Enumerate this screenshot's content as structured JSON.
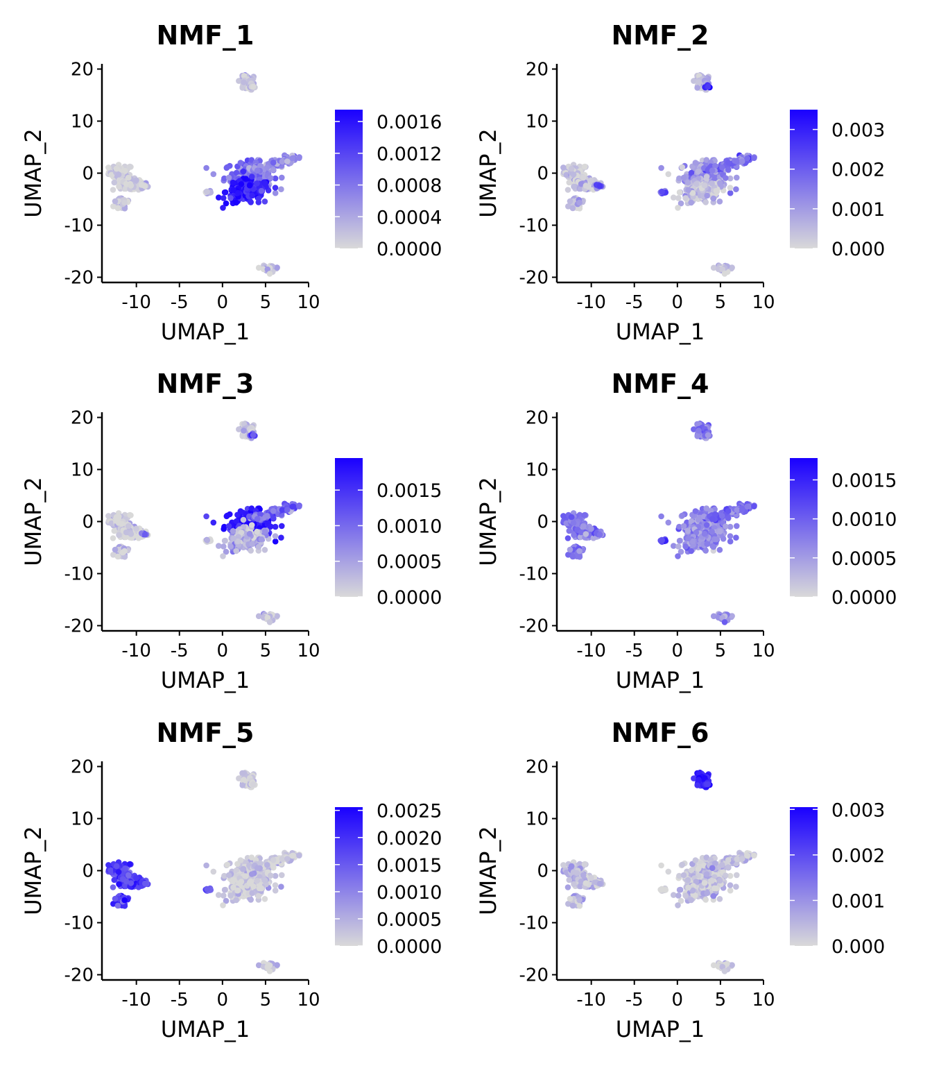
{
  "chart_data": [
    {
      "type": "scatter",
      "title": "NMF_1",
      "xlabel": "UMAP_1",
      "ylabel": "UMAP_2",
      "xlim": [
        -14,
        10
      ],
      "ylim": [
        -21,
        21
      ],
      "xticks": [
        "-10",
        "-5",
        "0",
        "5",
        "10"
      ],
      "yticks": [
        "-20",
        "-10",
        "0",
        "10",
        "20"
      ],
      "grid": false,
      "legend_position": "right",
      "colorbar": {
        "min": 0.0,
        "max": 0.00175,
        "low_color": "#d9d9d9",
        "high_color": "#1a00ff",
        "labels": [
          "0.0000",
          "0.0004",
          "0.0008",
          "0.0012",
          "0.0016"
        ]
      },
      "cluster_levels": {
        "left": 0.03,
        "small": 0.08,
        "main_upper": 0.45,
        "main_lower": 0.88,
        "arm": 0.35,
        "top": 0.1,
        "bottom": 0.08,
        "hotspot": 0.0
      }
    },
    {
      "type": "scatter",
      "title": "NMF_2",
      "xlabel": "UMAP_1",
      "ylabel": "UMAP_2",
      "xlim": [
        -14,
        10
      ],
      "ylim": [
        -21,
        21
      ],
      "xticks": [
        "-10",
        "-5",
        "0",
        "5",
        "10"
      ],
      "yticks": [
        "-20",
        "-10",
        "0",
        "10",
        "20"
      ],
      "grid": false,
      "legend_position": "right",
      "colorbar": {
        "min": 0.0,
        "max": 0.0035,
        "low_color": "#d9d9d9",
        "high_color": "#1a00ff",
        "labels": [
          "0.000",
          "0.001",
          "0.002",
          "0.003"
        ]
      },
      "cluster_levels": {
        "left": 0.12,
        "small": 0.55,
        "main_upper": 0.3,
        "main_lower": 0.12,
        "arm": 0.45,
        "top": 0.15,
        "bottom": 0.12,
        "hotspot": 0.75
      }
    },
    {
      "type": "scatter",
      "title": "NMF_3",
      "xlabel": "UMAP_1",
      "ylabel": "UMAP_2",
      "xlim": [
        -14,
        10
      ],
      "ylim": [
        -21,
        21
      ],
      "xticks": [
        "-10",
        "-5",
        "0",
        "5",
        "10"
      ],
      "yticks": [
        "-20",
        "-10",
        "0",
        "10",
        "20"
      ],
      "grid": false,
      "legend_position": "right",
      "colorbar": {
        "min": 0.0,
        "max": 0.00195,
        "low_color": "#d9d9d9",
        "high_color": "#1a00ff",
        "labels": [
          "0.0000",
          "0.0005",
          "0.0010",
          "0.0015"
        ]
      },
      "cluster_levels": {
        "left": 0.04,
        "small": 0.05,
        "main_upper": 0.88,
        "main_lower": 0.15,
        "arm": 0.55,
        "top": 0.08,
        "bottom": 0.1,
        "hotspot": 0.6
      }
    },
    {
      "type": "scatter",
      "title": "NMF_4",
      "xlabel": "UMAP_1",
      "ylabel": "UMAP_2",
      "xlim": [
        -14,
        10
      ],
      "ylim": [
        -21,
        21
      ],
      "xticks": [
        "-10",
        "-5",
        "0",
        "5",
        "10"
      ],
      "yticks": [
        "-20",
        "-10",
        "0",
        "10",
        "20"
      ],
      "grid": false,
      "legend_position": "right",
      "colorbar": {
        "min": 0.0,
        "max": 0.00178,
        "low_color": "#d9d9d9",
        "high_color": "#1a00ff",
        "labels": [
          "0.0000",
          "0.0005",
          "0.0010",
          "0.0015"
        ]
      },
      "cluster_levels": {
        "left": 0.45,
        "small": 0.7,
        "main_upper": 0.4,
        "main_lower": 0.35,
        "arm": 0.5,
        "top": 0.45,
        "bottom": 0.35,
        "hotspot": 0.5
      }
    },
    {
      "type": "scatter",
      "title": "NMF_5",
      "xlabel": "UMAP_1",
      "ylabel": "UMAP_2",
      "xlim": [
        -14,
        10
      ],
      "ylim": [
        -21,
        21
      ],
      "xticks": [
        "-10",
        "-5",
        "0",
        "5",
        "10"
      ],
      "yticks": [
        "-20",
        "-10",
        "0",
        "10",
        "20"
      ],
      "grid": false,
      "legend_position": "right",
      "colorbar": {
        "min": 0.0,
        "max": 0.00256,
        "low_color": "#d9d9d9",
        "high_color": "#1a00ff",
        "labels": [
          "0.0000",
          "0.0005",
          "0.0010",
          "0.0015",
          "0.0020",
          "0.0025"
        ]
      },
      "cluster_levels": {
        "left": 0.72,
        "small": 0.55,
        "main_upper": 0.04,
        "main_lower": 0.04,
        "arm": 0.03,
        "top": 0.03,
        "bottom": 0.03,
        "hotspot": 0.0
      }
    },
    {
      "type": "scatter",
      "title": "NMF_6",
      "xlabel": "UMAP_1",
      "ylabel": "UMAP_2",
      "xlim": [
        -14,
        10
      ],
      "ylim": [
        -21,
        21
      ],
      "xticks": [
        "-10",
        "-5",
        "0",
        "5",
        "10"
      ],
      "yticks": [
        "-20",
        "-10",
        "0",
        "10",
        "20"
      ],
      "grid": false,
      "legend_position": "right",
      "colorbar": {
        "min": 0.0,
        "max": 0.00305,
        "low_color": "#d9d9d9",
        "high_color": "#1a00ff",
        "labels": [
          "0.000",
          "0.001",
          "0.002",
          "0.003"
        ]
      },
      "cluster_levels": {
        "left": 0.15,
        "small": 0.05,
        "main_upper": 0.08,
        "main_lower": 0.08,
        "arm": 0.1,
        "top": 0.85,
        "bottom": 0.06,
        "hotspot": 0.0
      }
    }
  ]
}
